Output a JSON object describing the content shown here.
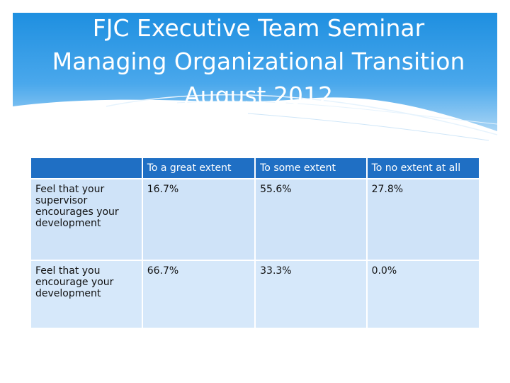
{
  "header": {
    "title_lines": [
      "FJC Executive Team Seminar",
      "Managing Organizational Transition",
      "August 2012"
    ]
  },
  "table": {
    "columns": [
      "To a great extent",
      "To some extent",
      "To no extent at all"
    ],
    "rows": [
      {
        "label": "Feel that your supervisor encourages your development",
        "values": [
          "16.7%",
          "55.6%",
          "27.8%"
        ]
      },
      {
        "label": "Feel that you encourage your development",
        "values": [
          "66.7%",
          "33.3%",
          "0.0%"
        ]
      }
    ]
  }
}
